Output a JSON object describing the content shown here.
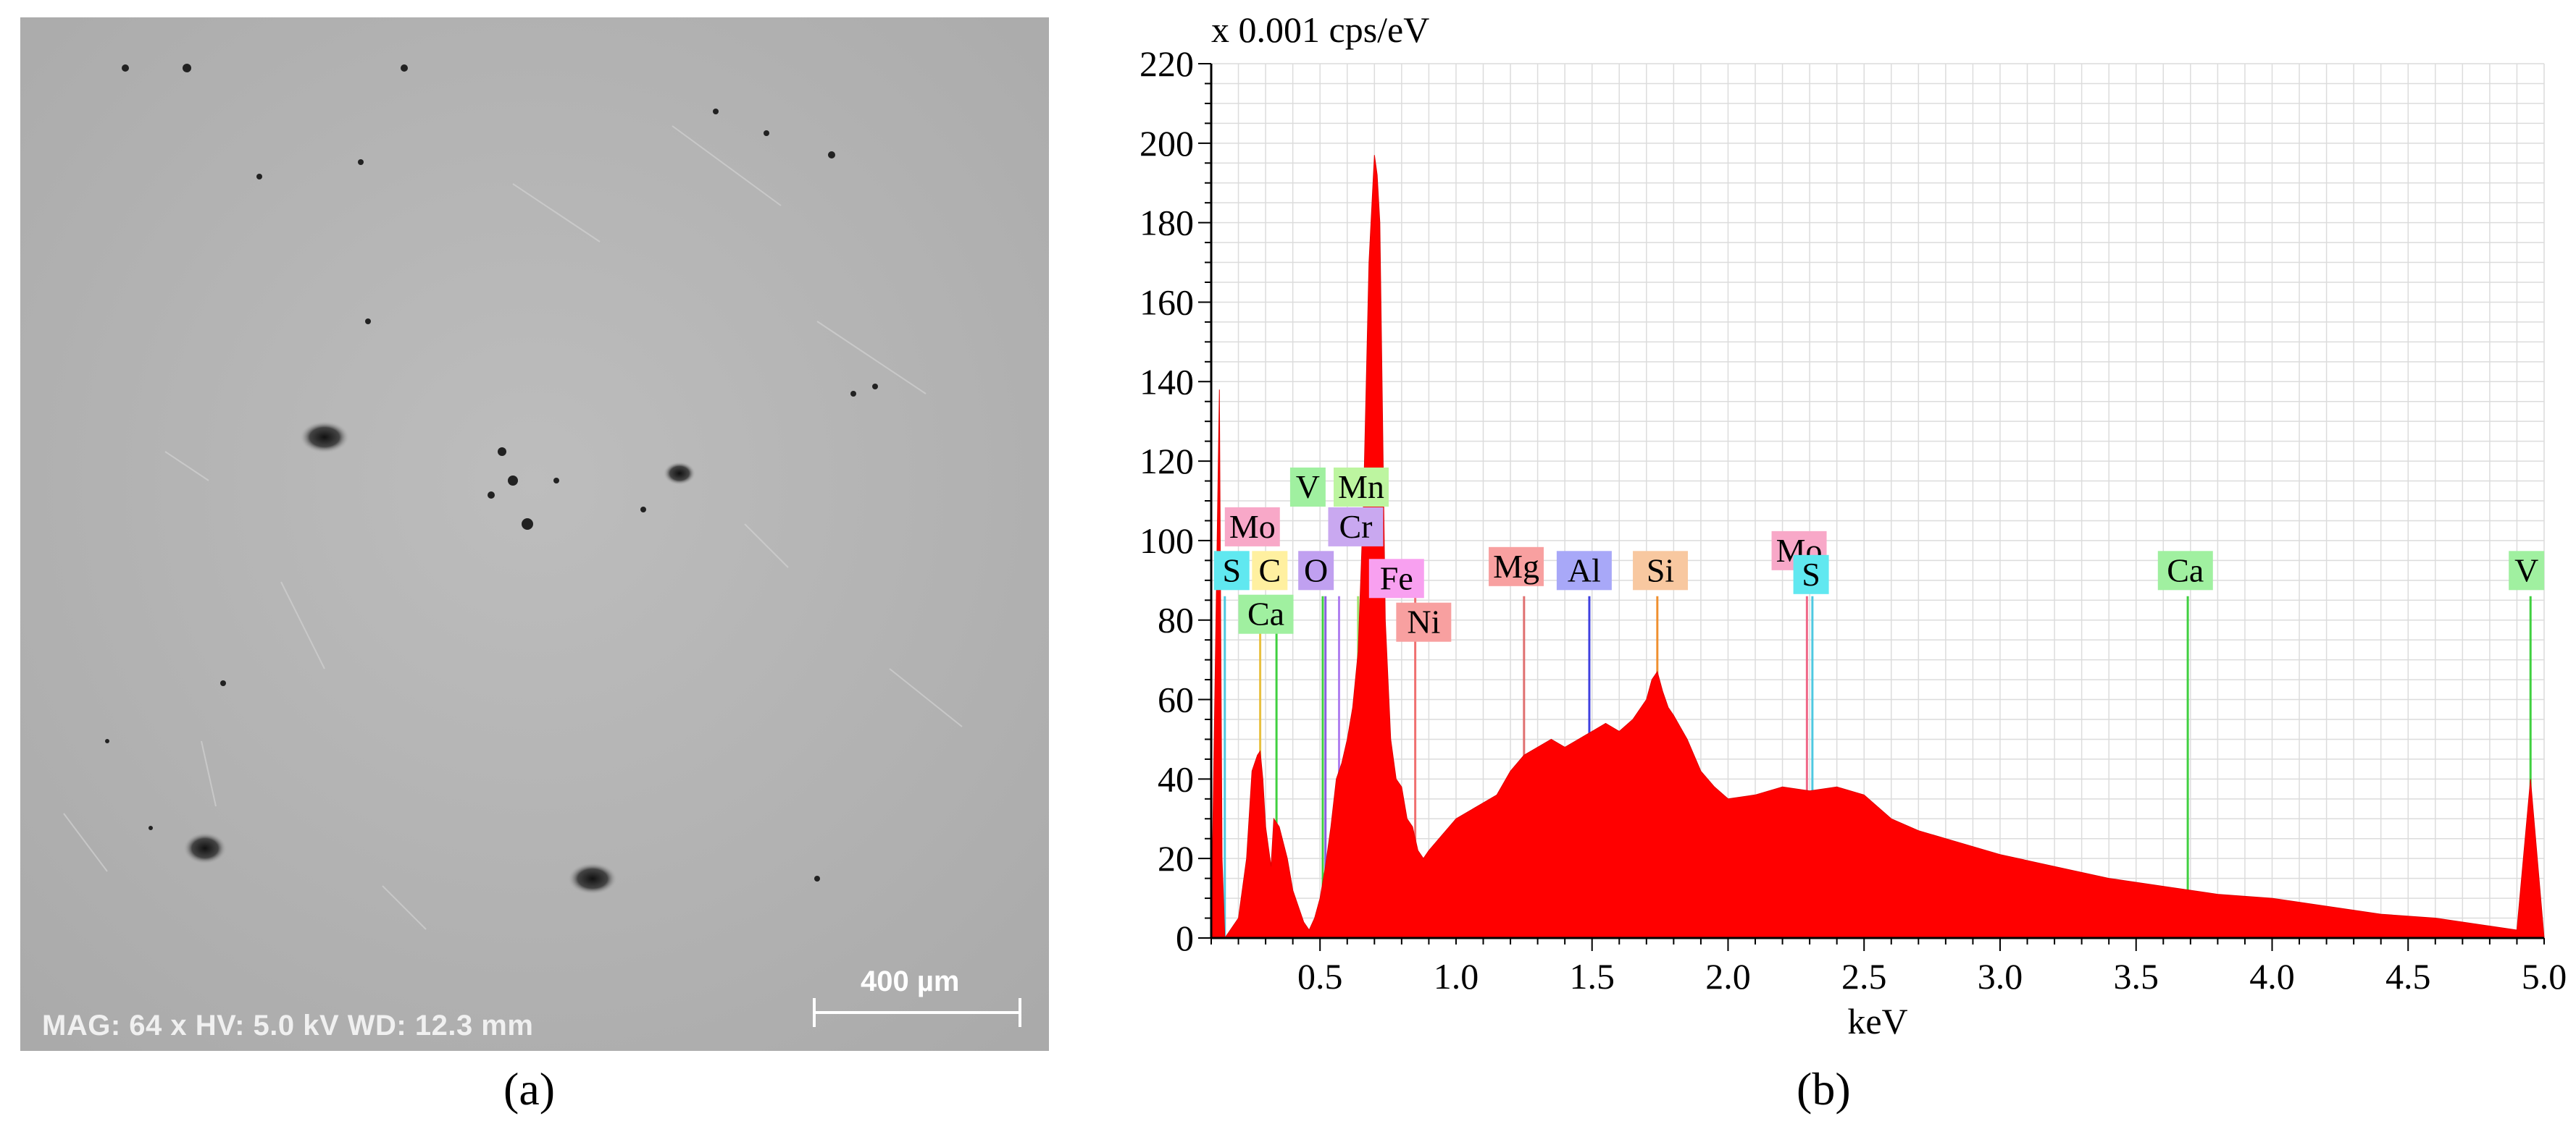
{
  "panel_a": {
    "info_text": "MAG: 64 x HV: 5.0 kV WD: 12.3 mm",
    "scale_bar_label": "400 µm",
    "caption": "(a)"
  },
  "panel_b": {
    "caption": "(b)"
  },
  "chart_data": {
    "type": "area",
    "title": "",
    "ylabel": "x 0.001 cps/eV",
    "xlabel": "keV",
    "xlim": [
      0.1,
      5.0
    ],
    "ylim": [
      0,
      220
    ],
    "x_ticks": [
      0.5,
      1.0,
      1.5,
      2.0,
      2.5,
      3.0,
      3.5,
      4.0,
      4.5,
      5.0
    ],
    "x_tick_labels": [
      "0.5",
      "1.0",
      "1.5",
      "2.0",
      "2.5",
      "3.0",
      "3.5",
      "4.0",
      "4.5",
      "5.0"
    ],
    "y_ticks": [
      0,
      20,
      40,
      60,
      80,
      100,
      120,
      140,
      160,
      180,
      200,
      220
    ],
    "y_tick_labels": [
      "0",
      "20",
      "40",
      "60",
      "80",
      "100",
      "120",
      "140",
      "160",
      "180",
      "200",
      "220"
    ],
    "grid": true,
    "spectrum_color": "#ff0000",
    "spectrum": {
      "x": [
        0.1,
        0.13,
        0.14,
        0.15,
        0.17,
        0.2,
        0.23,
        0.25,
        0.27,
        0.28,
        0.29,
        0.3,
        0.32,
        0.33,
        0.35,
        0.38,
        0.4,
        0.42,
        0.44,
        0.46,
        0.48,
        0.5,
        0.52,
        0.54,
        0.56,
        0.58,
        0.6,
        0.62,
        0.64,
        0.66,
        0.68,
        0.7,
        0.71,
        0.72,
        0.73,
        0.74,
        0.76,
        0.78,
        0.8,
        0.82,
        0.84,
        0.86,
        0.88,
        0.9,
        0.95,
        1.0,
        1.05,
        1.1,
        1.15,
        1.2,
        1.25,
        1.3,
        1.35,
        1.4,
        1.45,
        1.5,
        1.55,
        1.6,
        1.65,
        1.7,
        1.72,
        1.74,
        1.76,
        1.78,
        1.8,
        1.85,
        1.9,
        1.95,
        2.0,
        2.1,
        2.2,
        2.3,
        2.4,
        2.5,
        2.6,
        2.7,
        2.8,
        2.9,
        3.0,
        3.2,
        3.4,
        3.6,
        3.8,
        4.0,
        4.2,
        4.4,
        4.6,
        4.8,
        4.9,
        4.95,
        5.0
      ],
      "y": [
        0,
        138,
        20,
        0,
        2,
        5,
        20,
        42,
        46,
        47,
        40,
        28,
        18,
        30,
        28,
        20,
        12,
        8,
        4,
        2,
        5,
        10,
        18,
        28,
        40,
        44,
        50,
        58,
        72,
        110,
        170,
        197,
        192,
        180,
        130,
        80,
        50,
        40,
        38,
        30,
        28,
        22,
        20,
        22,
        26,
        30,
        32,
        34,
        36,
        42,
        46,
        48,
        50,
        48,
        50,
        52,
        54,
        52,
        55,
        60,
        65,
        67,
        62,
        58,
        56,
        50,
        42,
        38,
        35,
        36,
        38,
        37,
        38,
        36,
        30,
        27,
        25,
        23,
        21,
        18,
        15,
        13,
        11,
        10,
        8,
        6,
        5,
        3,
        2,
        40,
        0
      ]
    },
    "element_lines": [
      {
        "element": "S",
        "kev": 0.15,
        "color": "#4fc8e0"
      },
      {
        "element": "S",
        "kev": 2.31,
        "color": "#4fc8e0"
      },
      {
        "element": "C",
        "kev": 0.28,
        "color": "#e8c040"
      },
      {
        "element": "Ca",
        "kev": 0.34,
        "color": "#40d040"
      },
      {
        "element": "Ca",
        "kev": 3.69,
        "color": "#40d040"
      },
      {
        "element": "Mo",
        "kev": 2.29,
        "color": "#f06888"
      },
      {
        "element": "O",
        "kev": 0.52,
        "color": "#8a5ce0"
      },
      {
        "element": "Cr",
        "kev": 0.57,
        "color": "#b080f0"
      },
      {
        "element": "V",
        "kev": 0.51,
        "color": "#40d040"
      },
      {
        "element": "V",
        "kev": 4.95,
        "color": "#40d040"
      },
      {
        "element": "Mn",
        "kev": 0.64,
        "color": "#a0e070"
      },
      {
        "element": "Fe",
        "kev": 0.71,
        "color": "#e040d0"
      },
      {
        "element": "Ni",
        "kev": 0.85,
        "color": "#f07070"
      },
      {
        "element": "Mg",
        "kev": 1.25,
        "color": "#e07070"
      },
      {
        "element": "Al",
        "kev": 1.49,
        "color": "#4040e0"
      },
      {
        "element": "Si",
        "kev": 1.74,
        "color": "#f09030"
      }
    ],
    "element_labels": [
      {
        "text": "Mo",
        "kev": 0.15,
        "y": 100,
        "bg": "#f8a8c8"
      },
      {
        "text": "Cr",
        "kev": 0.53,
        "y": 100,
        "bg": "#c9a8f0"
      },
      {
        "text": "V",
        "kev": 0.39,
        "y": 110,
        "bg": "#a0f0a0"
      },
      {
        "text": "Mn",
        "kev": 0.55,
        "y": 110,
        "bg": "#bdf5a0"
      },
      {
        "text": "S",
        "kev": 0.11,
        "y": 89,
        "bg": "#60e8f0"
      },
      {
        "text": "C",
        "kev": 0.25,
        "y": 89,
        "bg": "#fff0a0"
      },
      {
        "text": "O",
        "kev": 0.42,
        "y": 89,
        "bg": "#c0a0f0"
      },
      {
        "text": "Fe",
        "kev": 0.68,
        "y": 87,
        "bg": "#f8a0f0"
      },
      {
        "text": "Ca",
        "kev": 0.2,
        "y": 78,
        "bg": "#a0f0a0"
      },
      {
        "text": "Ni",
        "kev": 0.78,
        "y": 76,
        "bg": "#f8a0a0"
      },
      {
        "text": "Mg",
        "kev": 1.12,
        "y": 90,
        "bg": "#f8a0a0"
      },
      {
        "text": "Al",
        "kev": 1.37,
        "y": 89,
        "bg": "#a8a8f8"
      },
      {
        "text": "Si",
        "kev": 1.65,
        "y": 89,
        "bg": "#f8c8a0"
      },
      {
        "text": "Mo",
        "kev": 2.16,
        "y": 94,
        "bg": "#f8a8c8"
      },
      {
        "text": "S",
        "kev": 2.24,
        "y": 88,
        "bg": "#60e8f0"
      },
      {
        "text": "Ca",
        "kev": 3.58,
        "y": 89,
        "bg": "#a0f0a0"
      },
      {
        "text": "V",
        "kev": 4.87,
        "y": 89,
        "bg": "#a0f0a0"
      }
    ]
  }
}
